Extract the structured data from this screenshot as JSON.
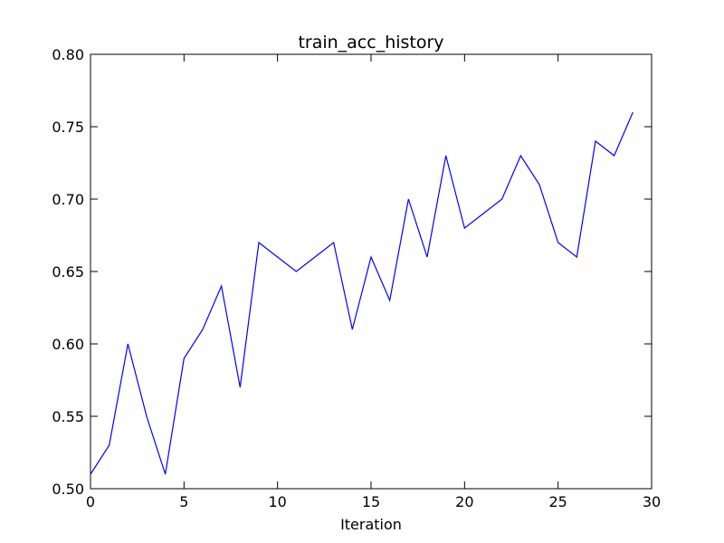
{
  "chart_data": {
    "type": "line",
    "title": "train_acc_history",
    "xlabel": "Iteration",
    "ylabel": "",
    "xlim": [
      0,
      30
    ],
    "ylim": [
      0.5,
      0.8
    ],
    "x_ticks": [
      0,
      5,
      10,
      15,
      20,
      25,
      30
    ],
    "y_ticks": [
      0.5,
      0.55,
      0.6,
      0.65,
      0.7,
      0.75,
      0.8
    ],
    "x_tick_labels": [
      "0",
      "5",
      "10",
      "15",
      "20",
      "25",
      "30"
    ],
    "y_tick_labels": [
      "0.50",
      "0.55",
      "0.60",
      "0.65",
      "0.70",
      "0.75",
      "0.80"
    ],
    "grid": false,
    "legend": "none",
    "series": [
      {
        "color": "#0000ff",
        "x": [
          0,
          1,
          2,
          3,
          4,
          5,
          6,
          7,
          8,
          9,
          10,
          11,
          12,
          13,
          14,
          15,
          16,
          17,
          18,
          19,
          20,
          21,
          22,
          23,
          24,
          25,
          26,
          27,
          28,
          29
        ],
        "values": [
          0.51,
          0.53,
          0.6,
          0.55,
          0.51,
          0.59,
          0.61,
          0.64,
          0.57,
          0.67,
          0.66,
          0.65,
          0.66,
          0.67,
          0.61,
          0.66,
          0.63,
          0.7,
          0.66,
          0.73,
          0.68,
          0.69,
          0.7,
          0.73,
          0.71,
          0.67,
          0.66,
          0.74,
          0.73,
          0.76
        ]
      }
    ]
  }
}
